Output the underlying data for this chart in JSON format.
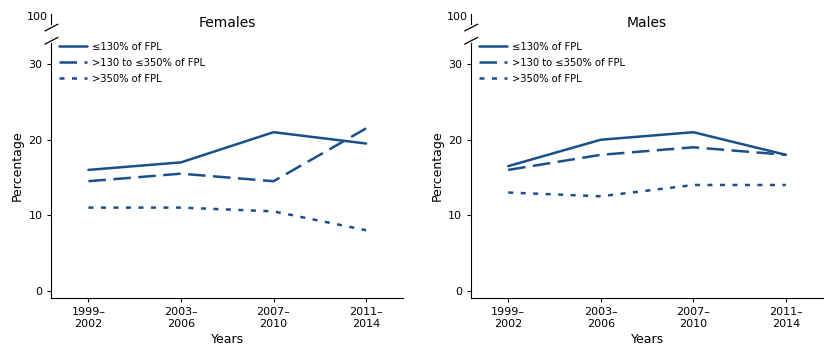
{
  "x_positions": [
    0,
    1,
    2,
    3
  ],
  "x_labels": [
    "1999–\n2002",
    "2003–\n2006",
    "2007–\n2010",
    "2011–\n2014"
  ],
  "females": {
    "title": "Females",
    "low_income": [
      16.0,
      17.0,
      21.0,
      19.5
    ],
    "mid_income": [
      14.5,
      15.5,
      14.5,
      21.5
    ],
    "high_income": [
      11.0,
      11.0,
      10.5,
      8.0
    ]
  },
  "males": {
    "title": "Males",
    "low_income": [
      16.5,
      20.0,
      21.0,
      18.0
    ],
    "mid_income": [
      16.0,
      18.0,
      19.0,
      18.0
    ],
    "high_income": [
      13.0,
      12.5,
      14.0,
      14.0
    ]
  },
  "legend_labels": [
    "≤130% of FPL",
    ">130 to ≤350% of FPL",
    ">350% of FPL"
  ],
  "ylabel": "Percentage",
  "xlabel": "Years",
  "line_color": "#1a4f8a",
  "line_width": 1.8
}
